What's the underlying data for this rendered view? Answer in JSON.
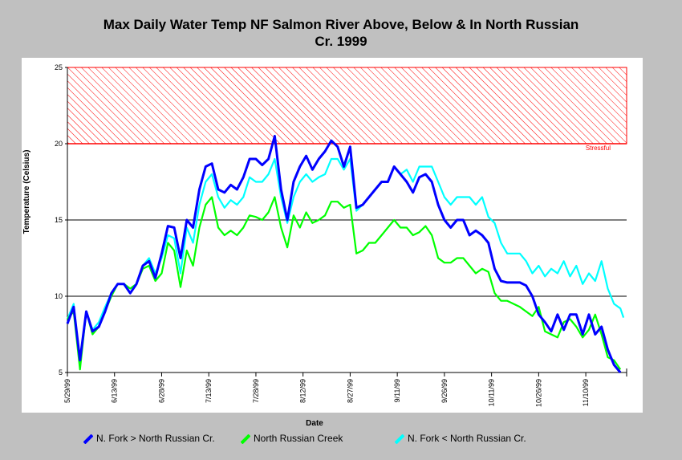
{
  "chart_data": {
    "type": "line",
    "title": "Max Daily Water Temp NF Salmon River Above, Below &  In North Russian Cr. 1999",
    "title_line1": "Max Daily Water Temp NF Salmon River Above, Below &  In North Russian",
    "title_line2": "Cr. 1999",
    "xlabel": "Date",
    "ylabel": "Temperature (Celsius)",
    "ylim": [
      5,
      25
    ],
    "yticks": [
      5,
      10,
      15,
      20,
      25
    ],
    "xlim": [
      "1999-05-29",
      "1999-11-23"
    ],
    "xticks": [
      "5/29/99",
      "6/13/99",
      "6/28/99",
      "7/13/99",
      "7/28/99",
      "8/12/99",
      "8/27/99",
      "9/11/99",
      "9/26/99",
      "10/11/99",
      "10/26/99",
      "11/10/99"
    ],
    "grid": "horizontal lines at 10, 15, 20",
    "stress_band": {
      "label": "Stressful",
      "from": 20,
      "to": 25,
      "color": "#ff0000"
    },
    "legend_position": "bottom",
    "series": [
      {
        "name": "N. Fork > North Russian Cr.",
        "color": "#0000ff",
        "points": [
          [
            "1999-05-29",
            8.2
          ],
          [
            "1999-05-31",
            9.3
          ],
          [
            "1999-06-02",
            5.8
          ],
          [
            "1999-06-04",
            9.0
          ],
          [
            "1999-06-06",
            7.7
          ],
          [
            "1999-06-08",
            8.0
          ],
          [
            "1999-06-10",
            9.0
          ],
          [
            "1999-06-12",
            10.2
          ],
          [
            "1999-06-14",
            10.8
          ],
          [
            "1999-06-16",
            10.8
          ],
          [
            "1999-06-18",
            10.2
          ],
          [
            "1999-06-20",
            10.8
          ],
          [
            "1999-06-22",
            12.0
          ],
          [
            "1999-06-24",
            12.3
          ],
          [
            "1999-06-26",
            11.2
          ],
          [
            "1999-06-28",
            12.8
          ],
          [
            "1999-06-30",
            14.6
          ],
          [
            "1999-07-02",
            14.5
          ],
          [
            "1999-07-04",
            12.5
          ],
          [
            "1999-07-06",
            15.0
          ],
          [
            "1999-07-08",
            14.5
          ],
          [
            "1999-07-10",
            17.0
          ],
          [
            "1999-07-12",
            18.5
          ],
          [
            "1999-07-14",
            18.7
          ],
          [
            "1999-07-16",
            17.0
          ],
          [
            "1999-07-18",
            16.8
          ],
          [
            "1999-07-20",
            17.3
          ],
          [
            "1999-07-22",
            17.0
          ],
          [
            "1999-07-24",
            17.8
          ],
          [
            "1999-07-26",
            19.0
          ],
          [
            "1999-07-28",
            19.0
          ],
          [
            "1999-07-30",
            18.6
          ],
          [
            "1999-08-01",
            19.0
          ],
          [
            "1999-08-03",
            20.5
          ],
          [
            "1999-08-05",
            17.0
          ],
          [
            "1999-08-07",
            15.0
          ],
          [
            "1999-08-09",
            17.5
          ],
          [
            "1999-08-11",
            18.5
          ],
          [
            "1999-08-13",
            19.2
          ],
          [
            "1999-08-15",
            18.3
          ],
          [
            "1999-08-17",
            19.0
          ],
          [
            "1999-08-19",
            19.5
          ],
          [
            "1999-08-21",
            20.2
          ],
          [
            "1999-08-23",
            19.8
          ],
          [
            "1999-08-25",
            18.5
          ],
          [
            "1999-08-27",
            19.8
          ],
          [
            "1999-08-29",
            15.8
          ],
          [
            "1999-08-31",
            16.0
          ],
          [
            "1999-09-02",
            16.5
          ],
          [
            "1999-09-04",
            17.0
          ],
          [
            "1999-09-06",
            17.5
          ],
          [
            "1999-09-08",
            17.5
          ],
          [
            "1999-09-10",
            18.5
          ],
          [
            "1999-09-12",
            18.0
          ],
          [
            "1999-09-14",
            17.5
          ],
          [
            "1999-09-16",
            16.8
          ],
          [
            "1999-09-18",
            17.8
          ],
          [
            "1999-09-20",
            18.0
          ],
          [
            "1999-09-22",
            17.5
          ],
          [
            "1999-09-24",
            16.0
          ],
          [
            "1999-09-26",
            15.0
          ],
          [
            "1999-09-28",
            14.5
          ],
          [
            "1999-09-30",
            15.0
          ],
          [
            "1999-10-02",
            15.0
          ],
          [
            "1999-10-04",
            14.0
          ],
          [
            "1999-10-06",
            14.3
          ],
          [
            "1999-10-08",
            14.0
          ],
          [
            "1999-10-10",
            13.5
          ],
          [
            "1999-10-12",
            11.8
          ],
          [
            "1999-10-14",
            11.0
          ],
          [
            "1999-10-16",
            10.9
          ],
          [
            "1999-10-18",
            10.9
          ],
          [
            "1999-10-20",
            10.9
          ],
          [
            "1999-10-22",
            10.7
          ],
          [
            "1999-10-24",
            10.0
          ],
          [
            "1999-10-26",
            8.8
          ],
          [
            "1999-10-28",
            8.3
          ],
          [
            "1999-10-30",
            7.7
          ],
          [
            "1999-11-01",
            8.8
          ],
          [
            "1999-11-03",
            7.8
          ],
          [
            "1999-11-05",
            8.8
          ],
          [
            "1999-11-07",
            8.8
          ],
          [
            "1999-11-09",
            7.5
          ],
          [
            "1999-11-11",
            8.8
          ],
          [
            "1999-11-13",
            7.5
          ],
          [
            "1999-11-15",
            8.0
          ],
          [
            "1999-11-17",
            6.5
          ],
          [
            "1999-11-19",
            5.5
          ],
          [
            "1999-11-21",
            5.0
          ]
        ]
      },
      {
        "name": "North Russian Creek",
        "color": "#00ff00",
        "points": [
          [
            "1999-05-29",
            8.5
          ],
          [
            "1999-05-31",
            9.0
          ],
          [
            "1999-06-02",
            5.2
          ],
          [
            "1999-06-04",
            9.0
          ],
          [
            "1999-06-06",
            7.5
          ],
          [
            "1999-06-08",
            8.0
          ],
          [
            "1999-06-10",
            9.0
          ],
          [
            "1999-06-12",
            10.0
          ],
          [
            "1999-06-14",
            10.8
          ],
          [
            "1999-06-16",
            10.8
          ],
          [
            "1999-06-18",
            10.5
          ],
          [
            "1999-06-20",
            10.8
          ],
          [
            "1999-06-22",
            11.8
          ],
          [
            "1999-06-24",
            12.0
          ],
          [
            "1999-06-26",
            11.0
          ],
          [
            "1999-06-28",
            11.5
          ],
          [
            "1999-06-30",
            13.5
          ],
          [
            "1999-07-02",
            13.0
          ],
          [
            "1999-07-04",
            10.6
          ],
          [
            "1999-07-06",
            13.0
          ],
          [
            "1999-07-08",
            12.0
          ],
          [
            "1999-07-10",
            14.5
          ],
          [
            "1999-07-12",
            16.0
          ],
          [
            "1999-07-14",
            16.5
          ],
          [
            "1999-07-16",
            14.5
          ],
          [
            "1999-07-18",
            14.0
          ],
          [
            "1999-07-20",
            14.3
          ],
          [
            "1999-07-22",
            14.0
          ],
          [
            "1999-07-24",
            14.5
          ],
          [
            "1999-07-26",
            15.3
          ],
          [
            "1999-07-28",
            15.2
          ],
          [
            "1999-07-30",
            15.0
          ],
          [
            "1999-08-01",
            15.5
          ],
          [
            "1999-08-03",
            16.5
          ],
          [
            "1999-08-05",
            14.5
          ],
          [
            "1999-08-07",
            13.2
          ],
          [
            "1999-08-09",
            15.3
          ],
          [
            "1999-08-11",
            14.5
          ],
          [
            "1999-08-13",
            15.5
          ],
          [
            "1999-08-15",
            14.8
          ],
          [
            "1999-08-17",
            15.0
          ],
          [
            "1999-08-19",
            15.3
          ],
          [
            "1999-08-21",
            16.2
          ],
          [
            "1999-08-23",
            16.2
          ],
          [
            "1999-08-25",
            15.8
          ],
          [
            "1999-08-27",
            16.0
          ],
          [
            "1999-08-29",
            12.8
          ],
          [
            "1999-08-31",
            13.0
          ],
          [
            "1999-09-02",
            13.5
          ],
          [
            "1999-09-04",
            13.5
          ],
          [
            "1999-09-06",
            14.0
          ],
          [
            "1999-09-08",
            14.5
          ],
          [
            "1999-09-10",
            15.0
          ],
          [
            "1999-09-12",
            14.5
          ],
          [
            "1999-09-14",
            14.5
          ],
          [
            "1999-09-16",
            14.0
          ],
          [
            "1999-09-18",
            14.2
          ],
          [
            "1999-09-20",
            14.6
          ],
          [
            "1999-09-22",
            14.0
          ],
          [
            "1999-09-24",
            12.5
          ],
          [
            "1999-09-26",
            12.2
          ],
          [
            "1999-09-28",
            12.2
          ],
          [
            "1999-09-30",
            12.5
          ],
          [
            "1999-10-02",
            12.5
          ],
          [
            "1999-10-04",
            12.0
          ],
          [
            "1999-10-06",
            11.5
          ],
          [
            "1999-10-08",
            11.8
          ],
          [
            "1999-10-10",
            11.6
          ],
          [
            "1999-10-12",
            10.2
          ],
          [
            "1999-10-14",
            9.7
          ],
          [
            "1999-10-16",
            9.7
          ],
          [
            "1999-10-18",
            9.5
          ],
          [
            "1999-10-20",
            9.3
          ],
          [
            "1999-10-22",
            9.0
          ],
          [
            "1999-10-24",
            8.7
          ],
          [
            "1999-10-26",
            9.3
          ],
          [
            "1999-10-28",
            7.7
          ],
          [
            "1999-10-30",
            7.5
          ],
          [
            "1999-11-01",
            7.3
          ],
          [
            "1999-11-03",
            8.3
          ],
          [
            "1999-11-05",
            8.5
          ],
          [
            "1999-11-07",
            8.0
          ],
          [
            "1999-11-09",
            7.3
          ],
          [
            "1999-11-11",
            7.8
          ],
          [
            "1999-11-13",
            8.8
          ],
          [
            "1999-11-15",
            7.5
          ],
          [
            "1999-11-17",
            6.0
          ],
          [
            "1999-11-19",
            5.8
          ],
          [
            "1999-11-21",
            5.2
          ]
        ]
      },
      {
        "name": "N. Fork < North Russian Cr.",
        "color": "#00ffff",
        "points": [
          [
            "1999-05-29",
            8.5
          ],
          [
            "1999-05-31",
            9.5
          ],
          [
            "1999-06-02",
            5.5
          ],
          [
            "1999-06-04",
            9.0
          ],
          [
            "1999-06-06",
            7.8
          ],
          [
            "1999-06-08",
            8.3
          ],
          [
            "1999-06-10",
            9.3
          ],
          [
            "1999-06-12",
            10.2
          ],
          [
            "1999-06-14",
            10.8
          ],
          [
            "1999-06-16",
            10.8
          ],
          [
            "1999-06-18",
            10.5
          ],
          [
            "1999-06-20",
            10.8
          ],
          [
            "1999-06-22",
            12.0
          ],
          [
            "1999-06-24",
            12.5
          ],
          [
            "1999-06-26",
            11.5
          ],
          [
            "1999-06-28",
            12.5
          ],
          [
            "1999-06-30",
            14.0
          ],
          [
            "1999-07-02",
            13.8
          ],
          [
            "1999-07-04",
            11.5
          ],
          [
            "1999-07-06",
            14.5
          ],
          [
            "1999-07-08",
            13.5
          ],
          [
            "1999-07-10",
            16.0
          ],
          [
            "1999-07-12",
            17.5
          ],
          [
            "1999-07-14",
            18.0
          ],
          [
            "1999-07-16",
            16.5
          ],
          [
            "1999-07-18",
            15.8
          ],
          [
            "1999-07-20",
            16.3
          ],
          [
            "1999-07-22",
            16.0
          ],
          [
            "1999-07-24",
            16.5
          ],
          [
            "1999-07-26",
            17.8
          ],
          [
            "1999-07-28",
            17.5
          ],
          [
            "1999-07-30",
            17.5
          ],
          [
            "1999-08-01",
            18.0
          ],
          [
            "1999-08-03",
            19.0
          ],
          [
            "1999-08-05",
            16.5
          ],
          [
            "1999-08-07",
            14.8
          ],
          [
            "1999-08-09",
            16.5
          ],
          [
            "1999-08-11",
            17.5
          ],
          [
            "1999-08-13",
            18.0
          ],
          [
            "1999-08-15",
            17.5
          ],
          [
            "1999-08-17",
            17.8
          ],
          [
            "1999-08-19",
            18.0
          ],
          [
            "1999-08-21",
            19.0
          ],
          [
            "1999-08-23",
            19.0
          ],
          [
            "1999-08-25",
            18.3
          ],
          [
            "1999-08-27",
            19.0
          ],
          [
            "1999-08-29",
            15.6
          ],
          [
            "1999-08-31",
            16.0
          ],
          [
            "1999-09-02",
            16.5
          ],
          [
            "1999-09-04",
            17.0
          ],
          [
            "1999-09-06",
            17.5
          ],
          [
            "1999-09-08",
            17.5
          ],
          [
            "1999-09-10",
            18.5
          ],
          [
            "1999-09-12",
            18.0
          ],
          [
            "1999-09-14",
            18.3
          ],
          [
            "1999-09-16",
            17.5
          ],
          [
            "1999-09-18",
            18.5
          ],
          [
            "1999-09-20",
            18.5
          ],
          [
            "1999-09-22",
            18.5
          ],
          [
            "1999-09-24",
            17.5
          ],
          [
            "1999-09-26",
            16.5
          ],
          [
            "1999-09-28",
            16.0
          ],
          [
            "1999-09-30",
            16.5
          ],
          [
            "1999-10-02",
            16.5
          ],
          [
            "1999-10-04",
            16.5
          ],
          [
            "1999-10-06",
            16.0
          ],
          [
            "1999-10-08",
            16.5
          ],
          [
            "1999-10-10",
            15.2
          ],
          [
            "1999-10-12",
            14.8
          ],
          [
            "1999-10-14",
            13.5
          ],
          [
            "1999-10-16",
            12.8
          ],
          [
            "1999-10-18",
            12.8
          ],
          [
            "1999-10-20",
            12.8
          ],
          [
            "1999-10-22",
            12.3
          ],
          [
            "1999-10-24",
            11.5
          ],
          [
            "1999-10-26",
            12.0
          ],
          [
            "1999-10-28",
            11.3
          ],
          [
            "1999-10-30",
            11.8
          ],
          [
            "1999-11-01",
            11.5
          ],
          [
            "1999-11-03",
            12.3
          ],
          [
            "1999-11-05",
            11.3
          ],
          [
            "1999-11-07",
            12.0
          ],
          [
            "1999-11-09",
            10.8
          ],
          [
            "1999-11-11",
            11.5
          ],
          [
            "1999-11-13",
            11.0
          ],
          [
            "1999-11-15",
            12.3
          ],
          [
            "1999-11-17",
            10.5
          ],
          [
            "1999-11-19",
            9.5
          ],
          [
            "1999-11-21",
            9.2
          ],
          [
            "1999-11-22",
            8.6
          ]
        ]
      }
    ]
  }
}
